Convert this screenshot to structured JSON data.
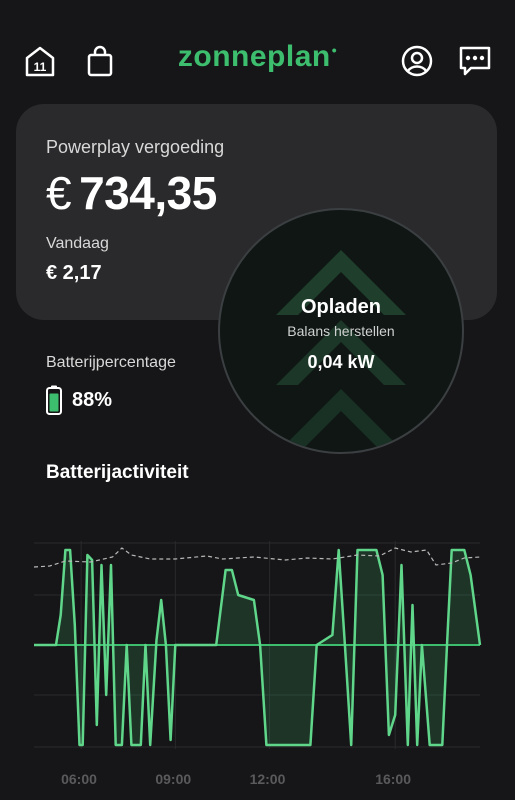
{
  "header": {
    "calendar_badge": "11",
    "logo_text": "zonneplan",
    "logo_dot": "•"
  },
  "earnings_card": {
    "title": "Powerplay vergoeding",
    "currency": "€",
    "amount": "734,35",
    "today_label": "Vandaag",
    "today_value": "€ 2,17"
  },
  "status_circle": {
    "title": "Opladen",
    "subtitle": "Balans herstellen",
    "power": "0,04 kW"
  },
  "battery": {
    "label": "Batterijpercentage",
    "value": "88%",
    "level": 0.88
  },
  "activity": {
    "title": "Batterijactiviteit"
  },
  "colors": {
    "accent": "#3dbe6e",
    "background": "#161618",
    "card": "#2a2a2c"
  },
  "chart_data": {
    "type": "line",
    "x_ticks": [
      "06:00",
      "09:00",
      "12:00",
      "16:00"
    ],
    "series": [
      {
        "style": "solid-green-filled",
        "points": [
          [
            4.5,
            0.0
          ],
          [
            5.2,
            0.0
          ],
          [
            5.35,
            0.3
          ],
          [
            5.5,
            0.95
          ],
          [
            5.65,
            0.95
          ],
          [
            5.8,
            0.2
          ],
          [
            5.95,
            -1.0
          ],
          [
            6.05,
            -1.0
          ],
          [
            6.2,
            0.9
          ],
          [
            6.35,
            0.85
          ],
          [
            6.5,
            -0.8
          ],
          [
            6.65,
            0.8
          ],
          [
            6.8,
            -0.5
          ],
          [
            6.95,
            0.8
          ],
          [
            7.1,
            -1.0
          ],
          [
            7.3,
            -1.0
          ],
          [
            7.45,
            0.0
          ],
          [
            7.6,
            -1.0
          ],
          [
            7.9,
            -1.0
          ],
          [
            8.05,
            0.0
          ],
          [
            8.2,
            -1.0
          ],
          [
            8.4,
            0.05
          ],
          [
            8.55,
            0.45
          ],
          [
            8.7,
            0.0
          ],
          [
            8.85,
            -0.95
          ],
          [
            9.0,
            0.0
          ],
          [
            10.3,
            0.0
          ],
          [
            10.6,
            0.75
          ],
          [
            10.8,
            0.75
          ],
          [
            11.0,
            0.5
          ],
          [
            11.5,
            0.45
          ],
          [
            11.7,
            0.0
          ],
          [
            11.9,
            -1.0
          ],
          [
            13.3,
            -1.0
          ],
          [
            13.5,
            0.0
          ],
          [
            14.0,
            0.1
          ],
          [
            14.2,
            0.95
          ],
          [
            14.4,
            0.0
          ],
          [
            14.6,
            -1.0
          ],
          [
            14.8,
            0.95
          ],
          [
            15.4,
            0.95
          ],
          [
            15.6,
            0.7
          ],
          [
            15.8,
            -0.9
          ],
          [
            16.0,
            -0.7
          ],
          [
            16.2,
            0.8
          ],
          [
            16.4,
            -1.0
          ],
          [
            16.55,
            0.4
          ],
          [
            16.7,
            -1.0
          ],
          [
            16.85,
            0.0
          ],
          [
            17.1,
            -1.0
          ],
          [
            17.5,
            -1.0
          ],
          [
            17.65,
            0.0
          ],
          [
            17.8,
            0.95
          ],
          [
            18.2,
            0.95
          ],
          [
            18.4,
            0.7
          ],
          [
            18.7,
            0.0
          ]
        ]
      },
      {
        "style": "dashed-grey",
        "points": [
          [
            4.5,
            0.78
          ],
          [
            5.0,
            0.79
          ],
          [
            5.5,
            0.84
          ],
          [
            6.3,
            0.83
          ],
          [
            7.0,
            0.88
          ],
          [
            7.3,
            0.97
          ],
          [
            7.6,
            0.9
          ],
          [
            8.2,
            0.86
          ],
          [
            9.0,
            0.86
          ],
          [
            10.0,
            0.89
          ],
          [
            10.5,
            0.86
          ],
          [
            11.5,
            0.88
          ],
          [
            12.5,
            0.85
          ],
          [
            13.2,
            0.87
          ],
          [
            14.0,
            0.86
          ],
          [
            14.8,
            0.9
          ],
          [
            15.5,
            0.89
          ],
          [
            16.0,
            0.97
          ],
          [
            16.5,
            0.93
          ],
          [
            17.0,
            0.95
          ],
          [
            17.3,
            0.8
          ],
          [
            17.8,
            0.82
          ],
          [
            18.2,
            0.87
          ],
          [
            18.7,
            0.88
          ]
        ]
      }
    ]
  }
}
